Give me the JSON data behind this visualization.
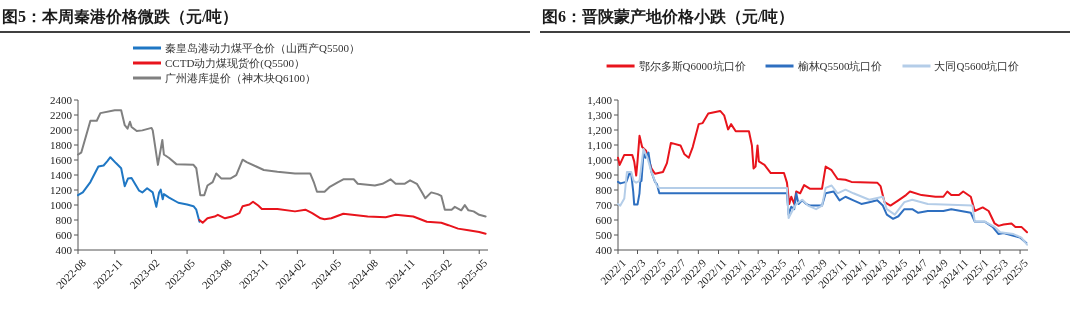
{
  "chart_data": [
    {
      "type": "line",
      "title": "图5：本周秦港价格微跌（元/吨）",
      "legend": "top",
      "xlim": [
        "2022-08-01",
        "2025-05-23"
      ],
      "ylim": [
        400,
        2400
      ],
      "yticks": [
        400,
        600,
        800,
        1000,
        1200,
        1400,
        1600,
        1800,
        2000,
        2200,
        2400
      ],
      "xticks": [
        "2022-08",
        "2022-11",
        "2023-02",
        "2023-05",
        "2023-08",
        "2023-11",
        "2024-02",
        "2024-05",
        "2024-08",
        "2024-11",
        "2025-02",
        "2025-05"
      ],
      "series": [
        {
          "name": "秦皇岛港动力煤平仓价（山西产Q5500）",
          "color": "#1f77c4",
          "x": [
            "2022-08-01",
            "2022-08-13",
            "2022-09-01",
            "2022-09-21",
            "2022-10-04",
            "2022-10-13",
            "2022-10-21",
            "2022-11-04",
            "2022-11-17",
            "2022-11-26",
            "2022-12-04",
            "2022-12-13",
            "2023-01-01",
            "2023-01-09",
            "2023-01-21",
            "2023-02-04",
            "2023-02-13",
            "2023-02-20",
            "2023-02-24",
            "2023-03-01",
            "2023-03-04",
            "2023-03-17",
            "2023-04-09",
            "2023-05-01",
            "2023-05-17",
            "2023-05-24",
            "2023-06-01"
          ],
          "values": [
            1131,
            1168,
            1306,
            1513,
            1527,
            1582,
            1637,
            1559,
            1490,
            1251,
            1352,
            1361,
            1191,
            1168,
            1223,
            1168,
            975,
            1168,
            1205,
            1076,
            1145,
            1099,
            1030,
            1007,
            984,
            938,
            777
          ]
        },
        {
          "name": "CCTD动力煤现货价(Q5500）",
          "color": "#e8141c",
          "x": [
            "2023-06-01",
            "2023-06-09",
            "2023-06-21",
            "2023-07-09",
            "2023-07-17",
            "2023-08-04",
            "2023-08-21",
            "2023-09-09",
            "2023-09-17",
            "2023-10-04",
            "2023-10-13",
            "2023-10-26",
            "2023-11-04",
            "2023-12-13",
            "2024-01-26",
            "2024-02-21",
            "2024-03-09",
            "2024-03-30",
            "2024-04-09",
            "2024-04-26",
            "2024-05-26",
            "2024-07-26",
            "2024-09-09",
            "2024-10-04",
            "2024-11-17",
            "2024-12-21",
            "2025-01-26",
            "2025-02-13",
            "2025-03-09",
            "2025-04-04",
            "2025-05-01",
            "2025-05-17"
          ],
          "values": [
            800,
            763,
            823,
            846,
            869,
            823,
            846,
            892,
            984,
            1007,
            1044,
            993,
            947,
            947,
            915,
            938,
            892,
            823,
            809,
            823,
            883,
            846,
            837,
            869,
            846,
            777,
            763,
            731,
            685,
            662,
            639,
            616
          ]
        },
        {
          "name": "广州港库提价（神木块Q6100）",
          "color": "#808080",
          "x": [
            "2022-08-01",
            "2022-08-09",
            "2022-09-01",
            "2022-09-17",
            "2022-09-26",
            "2022-11-01",
            "2022-11-17",
            "2022-11-26",
            "2022-12-03",
            "2022-12-09",
            "2022-12-13",
            "2022-12-26",
            "2023-01-09",
            "2023-02-01",
            "2023-02-04",
            "2023-02-17",
            "2023-02-28",
            "2023-03-04",
            "2023-03-17",
            "2023-04-04",
            "2023-05-17",
            "2023-05-24",
            "2023-06-03",
            "2023-06-13",
            "2023-06-21",
            "2023-07-04",
            "2023-07-13",
            "2023-07-26",
            "2023-08-17",
            "2023-09-01",
            "2023-09-17",
            "2023-09-27",
            "2023-10-21",
            "2023-11-09",
            "2023-12-13",
            "2024-01-26",
            "2024-03-04",
            "2024-03-13",
            "2024-03-21",
            "2024-04-09",
            "2024-04-21",
            "2024-05-13",
            "2024-05-26",
            "2024-06-21",
            "2024-07-01",
            "2024-08-13",
            "2024-09-01",
            "2024-09-21",
            "2024-10-04",
            "2024-10-26",
            "2024-11-09",
            "2024-11-26",
            "2024-12-09",
            "2024-12-17",
            "2025-01-01",
            "2025-01-17",
            "2025-01-26",
            "2025-02-04",
            "2025-02-21",
            "2025-03-01",
            "2025-03-17",
            "2025-03-26",
            "2025-04-04",
            "2025-04-17",
            "2025-05-01",
            "2025-05-17"
          ],
          "values": [
            1673,
            1697,
            2124,
            2124,
            2225,
            2262,
            2262,
            2064,
            2018,
            2110,
            2041,
            1986,
            1995,
            2028,
            1995,
            1535,
            1867,
            1673,
            1627,
            1545,
            1536,
            1490,
            1131,
            1131,
            1260,
            1306,
            1421,
            1352,
            1352,
            1398,
            1604,
            1572,
            1513,
            1467,
            1444,
            1421,
            1421,
            1306,
            1177,
            1177,
            1237,
            1306,
            1343,
            1343,
            1283,
            1260,
            1283,
            1343,
            1283,
            1283,
            1329,
            1283,
            1168,
            1090,
            1168,
            1145,
            1122,
            938,
            938,
            975,
            929,
            998,
            929,
            915,
            869,
            846
          ]
        }
      ]
    },
    {
      "type": "line",
      "title": "图6：晋陕蒙产地价格小跌（元/吨）",
      "legend": "top",
      "xlim": [
        "2022-01-01",
        "2025-05-25"
      ],
      "ylim": [
        400,
        1400
      ],
      "yticks": [
        400,
        500,
        600,
        700,
        800,
        900,
        {
          "value": 1000,
          "label": "1,000"
        },
        {
          "value": 1100,
          "label": "1,100"
        },
        {
          "value": 1200,
          "label": "1,200"
        },
        {
          "value": 1300,
          "label": "1,300"
        },
        {
          "value": 1400,
          "label": "1,400"
        }
      ],
      "xticks": [
        {
          "value": "2022-01",
          "label": "2022/1"
        },
        {
          "value": "2022-03",
          "label": "2022/3"
        },
        {
          "value": "2022-05",
          "label": "2022/5"
        },
        {
          "value": "2022-07",
          "label": "2022/7"
        },
        {
          "value": "2022-09",
          "label": "2022/9"
        },
        {
          "value": "2022-11",
          "label": "2022/11"
        },
        {
          "value": "2023-01",
          "label": "2023/1"
        },
        {
          "value": "2023-03",
          "label": "2023/3"
        },
        {
          "value": "2023-05",
          "label": "2023/5"
        },
        {
          "value": "2023-07",
          "label": "2023/7"
        },
        {
          "value": "2023-09",
          "label": "2023/9"
        },
        {
          "value": "2023-11",
          "label": "2023/11"
        },
        {
          "value": "2024-01",
          "label": "2024/1"
        },
        {
          "value": "2024-03",
          "label": "2024/3"
        },
        {
          "value": "2024-05",
          "label": "2024/5"
        },
        {
          "value": "2024-07",
          "label": "2024/7"
        },
        {
          "value": "2024-09",
          "label": "2024/9"
        },
        {
          "value": "2024-11",
          "label": "2024/11"
        },
        {
          "value": "2025-01",
          "label": "2025/1"
        },
        {
          "value": "2025-03",
          "label": "2025/3"
        },
        {
          "value": "2025-05",
          "label": "2025/5"
        }
      ],
      "series": [
        {
          "name": "鄂尔多斯Q6000坑口价",
          "color": "#e8141c",
          "x": [
            "2022-01-01",
            "2022-01-06",
            "2022-01-20",
            "2022-02-13",
            "2022-02-19",
            "2022-02-25",
            "2022-03-01",
            "2022-03-07",
            "2022-03-15",
            "2022-03-27",
            "2022-04-12",
            "2022-04-23",
            "2022-05-17",
            "2022-05-29",
            "2022-06-10",
            "2022-07-09",
            "2022-07-21",
            "2022-08-03",
            "2022-08-15",
            "2022-09-02",
            "2022-09-14",
            "2022-10-01",
            "2022-11-06",
            "2022-11-18",
            "2022-11-30",
            "2022-12-09",
            "2022-12-23",
            "2023-02-01",
            "2023-02-10",
            "2023-02-15",
            "2023-02-21",
            "2023-02-27",
            "2023-03-03",
            "2023-03-20",
            "2023-04-08",
            "2023-05-18",
            "2023-05-27",
            "2023-06-03",
            "2023-06-09",
            "2023-06-18",
            "2023-06-24",
            "2023-07-06",
            "2023-07-18",
            "2023-08-04",
            "2023-09-10",
            "2023-09-21",
            "2023-10-09",
            "2023-10-27",
            "2023-11-20",
            "2023-12-08",
            "2024-02-24",
            "2024-03-05",
            "2024-03-17",
            "2024-04-04",
            "2024-04-28",
            "2024-05-21",
            "2024-06-02",
            "2024-07-07",
            "2024-08-18",
            "2024-09-11",
            "2024-09-23",
            "2024-10-05",
            "2024-10-28",
            "2024-11-10",
            "2024-12-03",
            "2024-12-15",
            "2025-01-08",
            "2025-01-26",
            "2025-02-13",
            "2025-02-25",
            "2025-03-12",
            "2025-04-05",
            "2025-04-17",
            "2025-05-05",
            "2025-05-22"
          ],
          "values": [
            1015,
            967,
            1034,
            1034,
            991,
            896,
            991,
            1161,
            1086,
            1062,
            944,
            908,
            920,
            979,
            1114,
            1097,
            1038,
            1015,
            1086,
            1239,
            1246,
            1310,
            1327,
            1298,
            1204,
            1239,
            1192,
            1192,
            1097,
            944,
            956,
            1097,
            991,
            967,
            913,
            913,
            849,
            707,
            755,
            707,
            790,
            778,
            833,
            809,
            809,
            956,
            932,
            873,
            868,
            854,
            849,
            826,
            719,
            696,
            731,
            766,
            790,
            766,
            755,
            755,
            790,
            766,
            766,
            790,
            755,
            660,
            684,
            660,
            577,
            561,
            570,
            577,
            554,
            554,
            518
          ]
        },
        {
          "name": "榆林Q5500坑口价",
          "color": "#2e6fc0",
          "x": [
            "2022-01-01",
            "2022-01-08",
            "2022-01-26",
            "2022-02-04",
            "2022-02-10",
            "2022-02-16",
            "2022-02-19",
            "2022-03-01",
            "2022-03-07",
            "2022-03-10",
            "2022-03-13",
            "2022-03-19",
            "2022-03-25",
            "2022-04-03",
            "2022-04-12",
            "2022-04-23",
            "2022-04-29",
            "2022-05-06",
            "2023-05-27",
            "2023-06-01",
            "2023-06-09",
            "2023-06-18",
            "2023-06-24",
            "2023-07-01",
            "2023-07-12",
            "2023-07-24",
            "2023-08-04",
            "2023-09-10",
            "2023-09-21",
            "2023-10-15",
            "2023-11-02",
            "2023-11-20",
            "2023-12-14",
            "2024-01-07",
            "2024-01-31",
            "2024-02-24",
            "2024-03-12",
            "2024-03-24",
            "2024-04-12",
            "2024-04-28",
            "2024-05-16",
            "2024-06-09",
            "2024-06-27",
            "2024-07-26",
            "2024-09-11",
            "2024-10-05",
            "2024-12-03",
            "2024-12-15",
            "2025-01-14",
            "2025-02-07",
            "2025-02-25",
            "2025-03-12",
            "2025-04-11",
            "2025-05-01",
            "2025-05-20"
          ],
          "values": [
            854,
            844,
            854,
            908,
            908,
            790,
            703,
            703,
            778,
            873,
            861,
            1043,
            1015,
            1050,
            920,
            854,
            837,
            778,
            778,
            636,
            688,
            672,
            778,
            707,
            731,
            707,
            696,
            696,
            778,
            790,
            731,
            755,
            731,
            707,
            719,
            731,
            696,
            636,
            608,
            625,
            672,
            672,
            648,
            660,
            660,
            672,
            648,
            589,
            589,
            554,
            506,
            513,
            495,
            483,
            447
          ]
        },
        {
          "name": "大同Q5600坑口价",
          "color": "#b4cde8",
          "x": [
            "2022-01-01",
            "2022-01-08",
            "2022-01-20",
            "2022-01-28",
            "2022-02-10",
            "2022-02-17",
            "2022-02-25",
            "2022-03-07",
            "2022-03-19",
            "2022-03-31",
            "2022-04-12",
            "2022-04-29",
            "2022-05-06",
            "2023-05-27",
            "2023-06-01",
            "2023-06-12",
            "2023-06-24",
            "2023-07-12",
            "2023-07-30",
            "2023-08-23",
            "2023-09-10",
            "2023-09-21",
            "2023-10-09",
            "2023-10-27",
            "2023-11-20",
            "2023-12-14",
            "2024-01-31",
            "2024-03-12",
            "2024-03-24",
            "2024-04-17",
            "2024-05-16",
            "2024-06-09",
            "2024-07-26",
            "2024-09-11",
            "2024-12-08",
            "2024-12-15",
            "2025-01-14",
            "2025-02-13",
            "2025-03-02",
            "2025-04-11",
            "2025-05-05",
            "2025-05-22"
          ],
          "values": [
            707,
            696,
            743,
            920,
            920,
            861,
            849,
            861,
            1074,
            1015,
            920,
            825,
            814,
            814,
            613,
            660,
            707,
            735,
            696,
            672,
            696,
            814,
            830,
            778,
            802,
            778,
            735,
            755,
            672,
            636,
            719,
            735,
            707,
            703,
            696,
            589,
            589,
            554,
            518,
            506,
            483,
            435
          ]
        }
      ]
    }
  ]
}
